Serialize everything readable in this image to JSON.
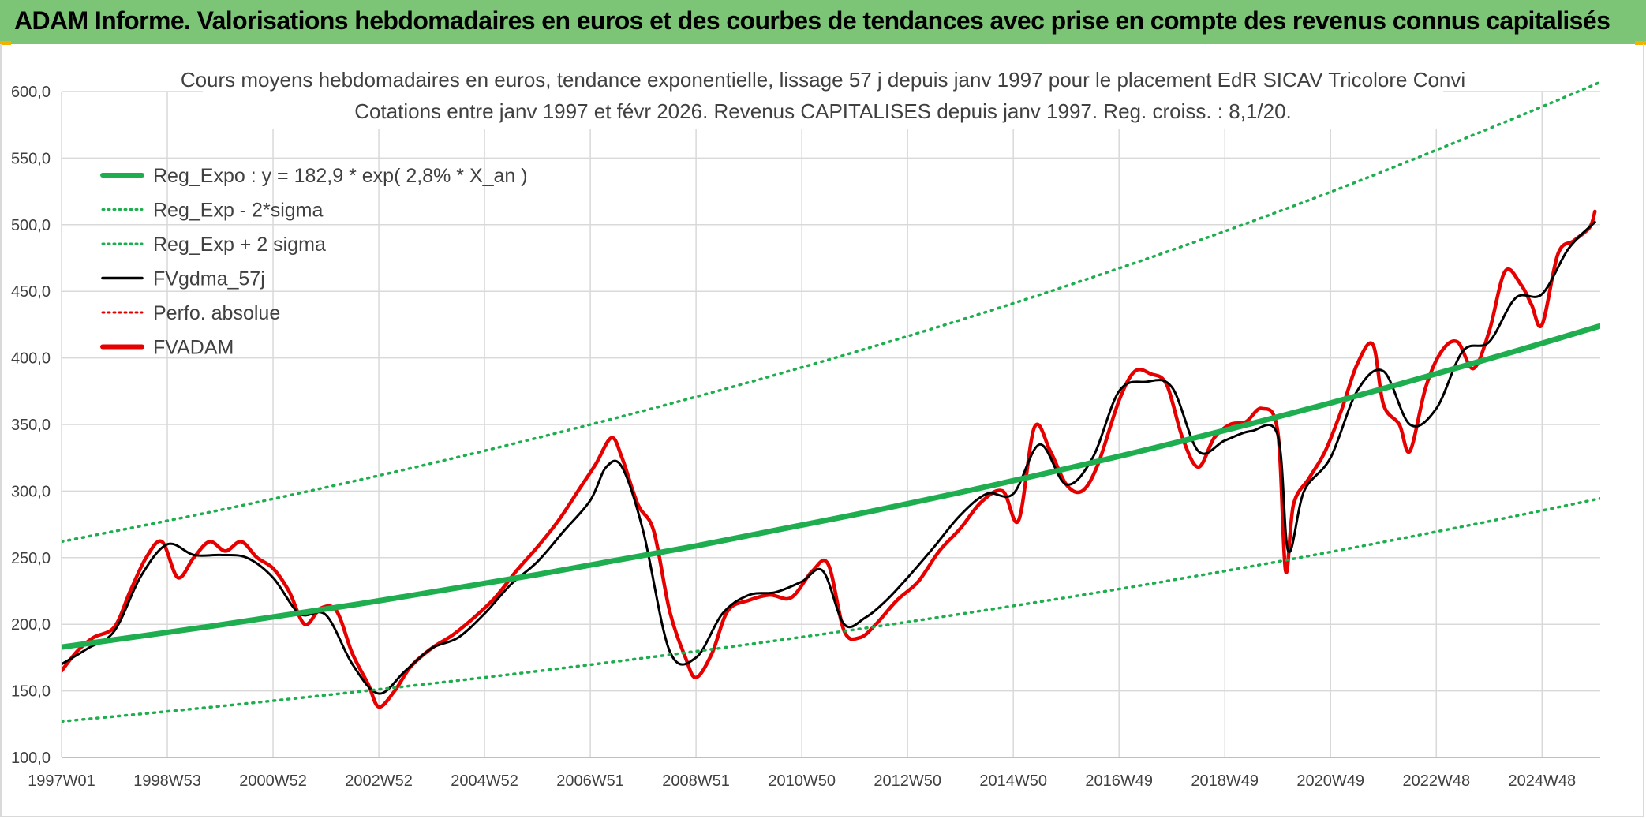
{
  "header": {
    "title": "ADAM Informe. Valorisations hebdomadaires en euros et des courbes de tendances avec prise en compte des revenus connus capitalisés"
  },
  "colors": {
    "header_bg": "#7cc576",
    "reg_expo": "#1fae4f",
    "sigma_lines": "#1fae4f",
    "fvgdma": "#000000",
    "perfo": "#e00000",
    "fvadam": "#e60000",
    "grid": "#d9d9d9"
  },
  "chart_data": {
    "type": "line",
    "title": "Cours moyens hebdomadaires en euros, tendance exponentielle, lissage 57 j depuis janv 1997 pour le placement EdR SICAV Tricolore Convi",
    "subtitle": "Cotations entre janv 1997 et févr 2026. Revenus CAPITALISES depuis janv 1997. Reg. croiss. : 8,1/20.",
    "ylim": [
      100,
      600
    ],
    "yticks": [
      "100,0",
      "150,0",
      "200,0",
      "250,0",
      "300,0",
      "350,0",
      "400,0",
      "450,0",
      "500,0",
      "550,0",
      "600,0"
    ],
    "xlim": [
      1997.0,
      2026.1
    ],
    "xticks": [
      {
        "label": "1997W01",
        "x": 1997.0
      },
      {
        "label": "1998W53",
        "x": 1999.0
      },
      {
        "label": "2000W52",
        "x": 2001.0
      },
      {
        "label": "2002W52",
        "x": 2003.0
      },
      {
        "label": "2004W52",
        "x": 2005.0
      },
      {
        "label": "2006W51",
        "x": 2007.0
      },
      {
        "label": "2008W51",
        "x": 2009.0
      },
      {
        "label": "2010W50",
        "x": 2011.0
      },
      {
        "label": "2012W50",
        "x": 2013.0
      },
      {
        "label": "2014W50",
        "x": 2015.0
      },
      {
        "label": "2016W49",
        "x": 2017.0
      },
      {
        "label": "2018W49",
        "x": 2019.0
      },
      {
        "label": "2020W49",
        "x": 2021.0
      },
      {
        "label": "2022W48",
        "x": 2023.0
      },
      {
        "label": "2024W48",
        "x": 2025.0
      }
    ],
    "legend_position": "top-left",
    "legend": [
      {
        "label": "Reg_Expo : y = 182,9 * exp( 2,8% *  X_an )",
        "style": "solid-thick",
        "color": "#1fae4f"
      },
      {
        "label": "Reg_Exp - 2*sigma",
        "style": "dotted",
        "color": "#1fae4f"
      },
      {
        "label": "Reg_Exp + 2 sigma",
        "style": "dotted",
        "color": "#1fae4f"
      },
      {
        "label": "FVgdma_57j",
        "style": "solid",
        "color": "#000000"
      },
      {
        "label": "Perfo. absolue",
        "style": "dotted",
        "color": "#e00000"
      },
      {
        "label": "FVADAM",
        "style": "solid-thick",
        "color": "#e60000"
      }
    ],
    "series": [
      {
        "name": "Reg_Expo : y = 182,9 * exp( 2,8% *  X_an )",
        "x": [
          1997.0,
          2000.0,
          2003.0,
          2006.0,
          2009.0,
          2012.0,
          2015.0,
          2018.0,
          2021.0,
          2024.0,
          2026.1
        ],
        "values": [
          182.9,
          199.5,
          217.6,
          237.3,
          258.8,
          282.3,
          307.8,
          335.7,
          366.2,
          399.4,
          424.0
        ]
      },
      {
        "name": "Reg_Exp - 2*sigma",
        "x": [
          1997.0,
          2000.0,
          2003.0,
          2006.0,
          2009.0,
          2012.0,
          2015.0,
          2018.0,
          2021.0,
          2024.0,
          2026.1
        ],
        "values": [
          127.0,
          138.5,
          151.1,
          164.8,
          179.7,
          196.0,
          213.8,
          233.1,
          254.3,
          277.3,
          294.5
        ]
      },
      {
        "name": "Reg_Exp + 2 sigma",
        "x": [
          1997.0,
          2000.0,
          2003.0,
          2006.0,
          2009.0,
          2012.0,
          2015.0,
          2018.0,
          2021.0,
          2024.0,
          2026.1
        ],
        "values": [
          262.0,
          285.8,
          311.7,
          340.0,
          370.8,
          404.4,
          441.0,
          481.0,
          524.6,
          572.2,
          607.0
        ]
      },
      {
        "name": "FVgdma_57j",
        "x": [
          1997.0,
          1997.5,
          1998.0,
          1998.5,
          1999.0,
          1999.5,
          2000.0,
          2000.5,
          2001.0,
          2001.5,
          2002.0,
          2002.5,
          2003.0,
          2003.5,
          2004.0,
          2004.5,
          2005.0,
          2005.5,
          2006.0,
          2006.5,
          2007.0,
          2007.3,
          2007.6,
          2008.0,
          2008.5,
          2009.0,
          2009.5,
          2010.0,
          2010.5,
          2011.0,
          2011.4,
          2011.8,
          2012.2,
          2012.6,
          2013.0,
          2013.5,
          2014.0,
          2014.5,
          2015.0,
          2015.5,
          2016.0,
          2016.5,
          2017.0,
          2017.5,
          2018.0,
          2018.5,
          2019.0,
          2019.5,
          2020.0,
          2020.2,
          2020.5,
          2021.0,
          2021.5,
          2022.0,
          2022.5,
          2023.0,
          2023.5,
          2024.0,
          2024.5,
          2025.0,
          2025.5,
          2026.0
        ],
        "values": [
          170,
          182,
          195,
          236,
          260,
          252,
          252,
          250,
          235,
          208,
          207,
          170,
          148,
          165,
          182,
          190,
          208,
          230,
          247,
          270,
          293,
          318,
          318,
          270,
          180,
          175,
          208,
          222,
          224,
          232,
          240,
          200,
          205,
          218,
          235,
          258,
          282,
          298,
          298,
          335,
          305,
          325,
          375,
          382,
          378,
          330,
          338,
          345,
          342,
          255,
          300,
          325,
          375,
          390,
          350,
          362,
          405,
          412,
          445,
          448,
          482,
          502
        ]
      },
      {
        "name": "FVADAM",
        "x": [
          1997.0,
          1997.3,
          1997.6,
          1998.0,
          1998.3,
          1998.6,
          1998.9,
          1999.2,
          1999.5,
          1999.8,
          2000.1,
          2000.4,
          2000.7,
          2001.0,
          2001.3,
          2001.6,
          2001.9,
          2002.2,
          2002.5,
          2002.8,
          2003.0,
          2003.3,
          2003.6,
          2004.0,
          2004.4,
          2004.8,
          2005.2,
          2005.6,
          2006.0,
          2006.4,
          2006.8,
          2007.1,
          2007.4,
          2007.6,
          2007.9,
          2008.2,
          2008.5,
          2008.8,
          2009.0,
          2009.3,
          2009.6,
          2010.0,
          2010.4,
          2010.8,
          2011.2,
          2011.5,
          2011.8,
          2012.1,
          2012.4,
          2012.8,
          2013.2,
          2013.6,
          2014.0,
          2014.4,
          2014.8,
          2015.1,
          2015.4,
          2015.7,
          2016.0,
          2016.3,
          2016.6,
          2017.0,
          2017.3,
          2017.6,
          2017.9,
          2018.2,
          2018.5,
          2018.8,
          2019.1,
          2019.4,
          2019.7,
          2020.0,
          2020.15,
          2020.3,
          2020.6,
          2020.9,
          2021.2,
          2021.5,
          2021.8,
          2022.0,
          2022.3,
          2022.5,
          2022.8,
          2023.1,
          2023.4,
          2023.7,
          2024.0,
          2024.3,
          2024.6,
          2024.8,
          2025.0,
          2025.3,
          2025.6,
          2025.9,
          2026.0
        ],
        "values": [
          165,
          180,
          190,
          198,
          225,
          250,
          262,
          235,
          250,
          262,
          255,
          262,
          250,
          242,
          225,
          200,
          212,
          210,
          178,
          155,
          138,
          150,
          168,
          182,
          192,
          205,
          220,
          240,
          258,
          278,
          302,
          320,
          340,
          325,
          290,
          270,
          210,
          175,
          160,
          178,
          210,
          218,
          222,
          220,
          240,
          245,
          195,
          190,
          200,
          218,
          232,
          255,
          272,
          292,
          300,
          278,
          348,
          330,
          305,
          300,
          320,
          368,
          390,
          388,
          380,
          340,
          318,
          340,
          350,
          352,
          362,
          345,
          240,
          290,
          310,
          330,
          360,
          395,
          410,
          365,
          350,
          330,
          378,
          405,
          412,
          392,
          420,
          465,
          455,
          440,
          425,
          478,
          488,
          498,
          510
        ]
      }
    ]
  }
}
